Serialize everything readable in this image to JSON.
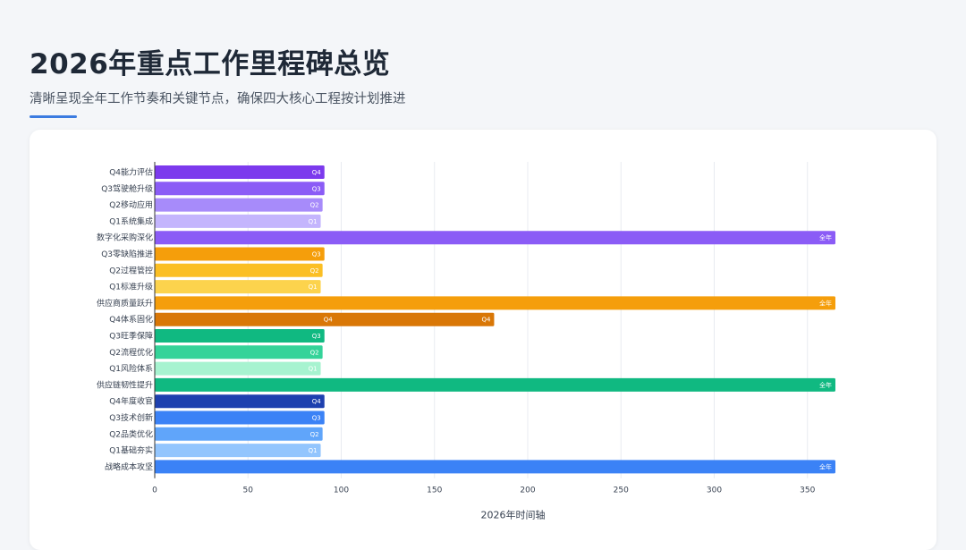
{
  "header": {
    "title": "2026年重点工作里程碑总览",
    "subtitle": "清晰呈现全年工作节奏和关键节点，确保四大核心工程按计划推进"
  },
  "colors": {
    "accent": "#3b7be0",
    "grid": "#e8ebf0",
    "axis": "#333333"
  },
  "chart_data": {
    "type": "bar",
    "orientation": "horizontal",
    "xlabel": "2026年时间轴",
    "xlim": [
      0,
      365
    ],
    "xticks": [
      0,
      50,
      100,
      150,
      200,
      250,
      300,
      350
    ],
    "grid": true,
    "bars": [
      {
        "category": "Q4能力评估",
        "value": 91,
        "label": "Q4",
        "color": "#7c3aed"
      },
      {
        "category": "Q3驾驶舱升级",
        "value": 91,
        "label": "Q3",
        "color": "#8b5cf6"
      },
      {
        "category": "Q2移动应用",
        "value": 90,
        "label": "Q2",
        "color": "#a78bfa"
      },
      {
        "category": "Q1系统集成",
        "value": 89,
        "label": "Q1",
        "color": "#c4b5fd"
      },
      {
        "category": "数字化采购深化",
        "value": 365,
        "label": "全年",
        "color": "#8b5cf6"
      },
      {
        "category": "Q3零缺陷推进",
        "value": 91,
        "label": "Q3",
        "color": "#f59e0b"
      },
      {
        "category": "Q2过程管控",
        "value": 90,
        "label": "Q2",
        "color": "#fbbf24"
      },
      {
        "category": "Q1标准升级",
        "value": 89,
        "label": "Q1",
        "color": "#fcd34d"
      },
      {
        "category": "供应商质量跃升",
        "value": 365,
        "label": "全年",
        "color": "#f59e0b"
      },
      {
        "category": "Q4体系固化",
        "value": 182,
        "label": "Q4",
        "color": "#d97706",
        "inner_label": "Q4"
      },
      {
        "category": "Q3旺季保障",
        "value": 91,
        "label": "Q3",
        "color": "#10b981"
      },
      {
        "category": "Q2流程优化",
        "value": 90,
        "label": "Q2",
        "color": "#34d399"
      },
      {
        "category": "Q1风险体系",
        "value": 89,
        "label": "Q1",
        "color": "#a7f3d0"
      },
      {
        "category": "供应链韧性提升",
        "value": 365,
        "label": "全年",
        "color": "#10b981"
      },
      {
        "category": "Q4年度收官",
        "value": 91,
        "label": "Q4",
        "color": "#1e40af"
      },
      {
        "category": "Q3技术创新",
        "value": 91,
        "label": "Q3",
        "color": "#3b82f6"
      },
      {
        "category": "Q2品类优化",
        "value": 90,
        "label": "Q2",
        "color": "#60a5fa"
      },
      {
        "category": "Q1基础夯实",
        "value": 89,
        "label": "Q1",
        "color": "#93c5fd"
      },
      {
        "category": "战略成本攻坚",
        "value": 365,
        "label": "全年",
        "color": "#3b82f6"
      }
    ]
  }
}
